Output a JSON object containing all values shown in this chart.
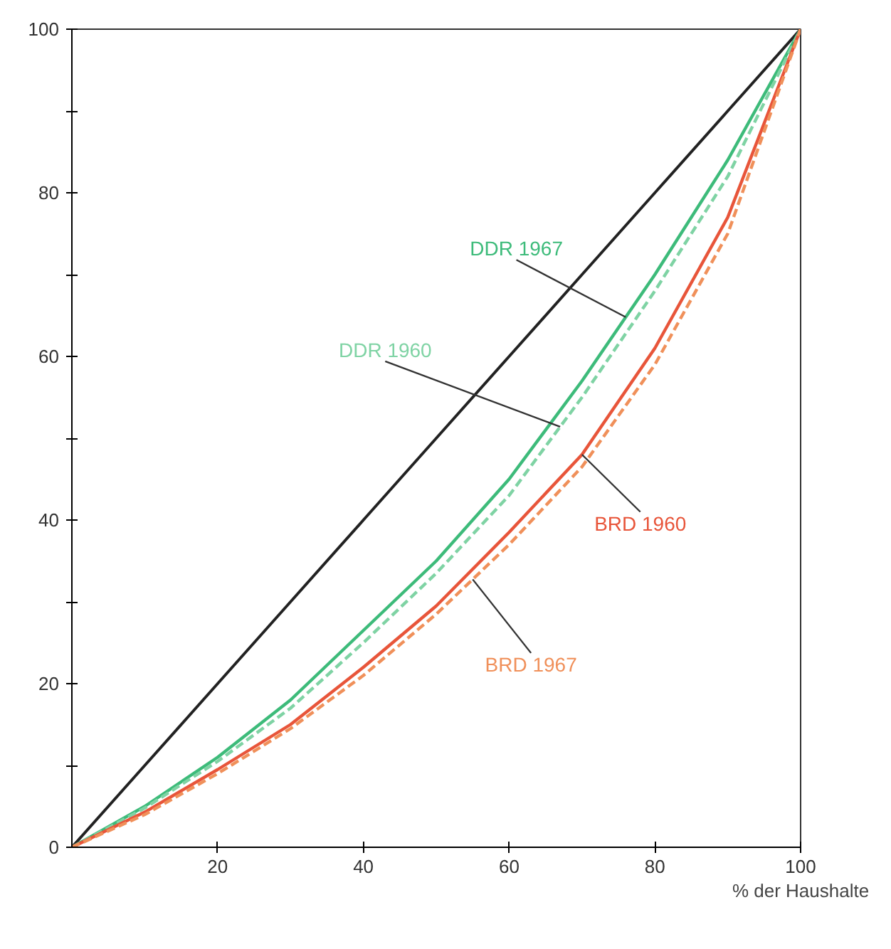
{
  "chart_data": {
    "type": "line",
    "xlabel": "% der Haushalte",
    "x": [
      0,
      10,
      20,
      30,
      40,
      50,
      60,
      70,
      80,
      90,
      100
    ],
    "series": [
      {
        "color": "#222222",
        "line_style": "solid",
        "values": [
          0,
          10,
          20,
          30,
          40,
          50,
          60,
          70,
          80,
          90,
          100
        ]
      },
      {
        "name": "DDR 1967",
        "color": "#3dbb7a",
        "line_style": "solid",
        "values": [
          0,
          5,
          11,
          18,
          26.5,
          35,
          45,
          57,
          70,
          84,
          100
        ]
      },
      {
        "name": "DDR 1960",
        "color": "#7fd3a4",
        "line_style": "dashed",
        "values": [
          0,
          4.8,
          10.5,
          17,
          25,
          33.5,
          43,
          55,
          68,
          82,
          100
        ]
      },
      {
        "name": "BRD 1960",
        "color": "#e8553a",
        "line_style": "solid",
        "values": [
          0,
          4.3,
          9.5,
          15,
          22,
          29.5,
          38.5,
          48,
          61,
          77,
          100
        ]
      },
      {
        "name": "BRD 1967",
        "color": "#f0905a",
        "line_style": "dashed",
        "values": [
          0,
          4,
          9,
          14.5,
          21,
          28.5,
          37,
          46.5,
          59,
          75,
          100
        ]
      }
    ],
    "xlim": [
      0,
      100
    ],
    "ylim": [
      0,
      100
    ],
    "xticks": [
      20,
      40,
      60,
      80,
      100
    ],
    "yticks": [
      0,
      {
        "value": 10,
        "label": null
      },
      20,
      {
        "value": 30,
        "label": null
      },
      40,
      {
        "value": 50,
        "label": null
      },
      60,
      {
        "value": 70,
        "label": null
      },
      80,
      {
        "value": 90,
        "label": null
      },
      100
    ],
    "grid": false
  }
}
